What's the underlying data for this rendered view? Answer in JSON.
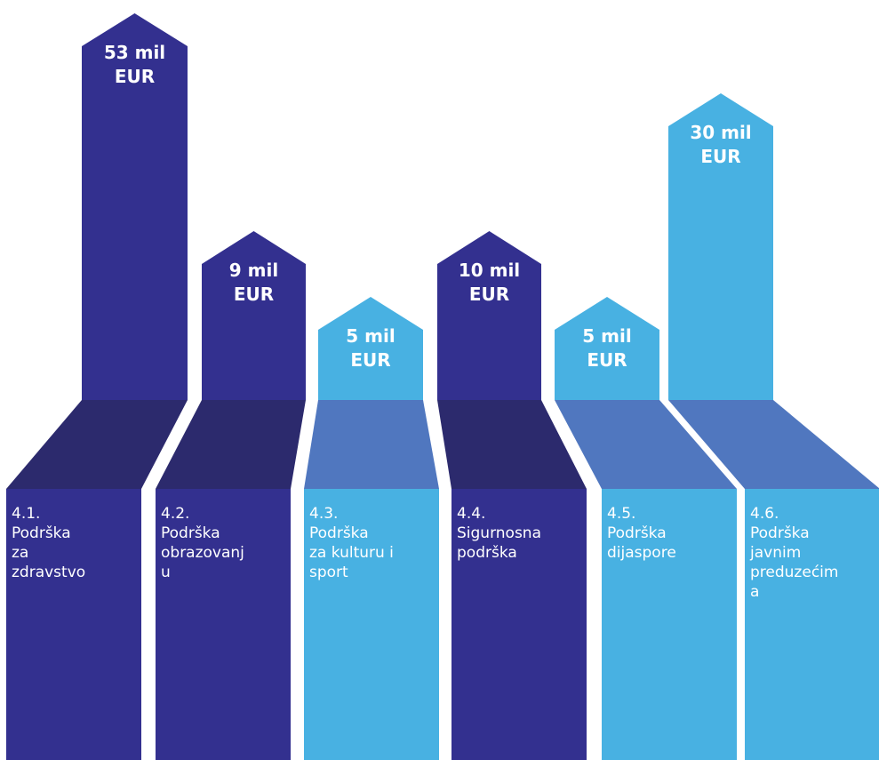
{
  "chart_data": {
    "type": "bar",
    "unit": "mil EUR",
    "colors": {
      "dark_top": "#33308f",
      "dark_fold": "#2c2a6d",
      "light_top": "#48b1e2",
      "light_fold": "#5077bf"
    },
    "bars": [
      {
        "id": "4.1",
        "value": 53,
        "value_label": "53 mil\nEUR",
        "label": "4.1.\nPodrška\nza\nzdravstvo",
        "shade": "dark"
      },
      {
        "id": "4.2",
        "value": 9,
        "value_label": "9 mil\nEUR",
        "label": "4.2.\nPodrška\nobrazovanj\nu",
        "shade": "dark"
      },
      {
        "id": "4.3",
        "value": 5,
        "value_label": "5 mil\nEUR",
        "label": "4.3.\nPodrška\nza kulturu i\nsport",
        "shade": "light"
      },
      {
        "id": "4.4",
        "value": 10,
        "value_label": "10 mil\nEUR",
        "label": "4.4.\nSigurnosna\npodrška",
        "shade": "dark"
      },
      {
        "id": "4.5",
        "value": 5,
        "value_label": "5 mil\nEUR",
        "label": "4.5.\nPodrška\ndijaspore",
        "shade": "light"
      },
      {
        "id": "4.6",
        "value": 30,
        "value_label": "30 mil\nEUR",
        "label": "4.6.\nPodrška\njavnim\npreduzećim\na",
        "shade": "light"
      }
    ]
  }
}
